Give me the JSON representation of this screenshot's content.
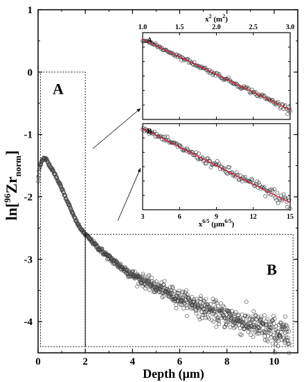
{
  "chart_data": [
    {
      "id": "main",
      "type": "scatter",
      "xlabel": "Depth (μm)",
      "ylabel_parts": {
        "pre": "ln[",
        "sup": "96",
        "base": "Zr",
        "sub": "norm",
        "post": "]"
      },
      "xlim": [
        0,
        11
      ],
      "ylim": [
        -4.5,
        1
      ],
      "x_ticks": [
        0,
        2,
        4,
        6,
        8,
        10
      ],
      "y_ticks": [
        1,
        0,
        -1,
        -2,
        -3,
        -4
      ],
      "x_tick_labels": [
        "0",
        "2",
        "4",
        "6",
        "8",
        "10"
      ],
      "y_tick_labels": [
        "1",
        "0",
        "-1",
        "-2",
        "-3",
        "-4"
      ],
      "vertical_line_x": 2.0,
      "region_labels": [
        {
          "label": "A",
          "x_range": [
            0.1,
            2.0
          ],
          "y_range": [
            -4.4,
            0.0
          ]
        },
        {
          "label": "B",
          "x_range": [
            2.0,
            10.8
          ],
          "y_range": [
            -4.4,
            -2.6
          ]
        }
      ],
      "curve_points": [
        [
          0.0,
          -1.75
        ],
        [
          0.05,
          -1.55
        ],
        [
          0.15,
          -1.42
        ],
        [
          0.25,
          -1.38
        ],
        [
          0.35,
          -1.4
        ],
        [
          0.5,
          -1.5
        ],
        [
          0.7,
          -1.63
        ],
        [
          0.9,
          -1.78
        ],
        [
          1.1,
          -1.95
        ],
        [
          1.3,
          -2.12
        ],
        [
          1.5,
          -2.3
        ],
        [
          1.7,
          -2.45
        ],
        [
          1.9,
          -2.56
        ],
        [
          2.0,
          -2.6
        ],
        [
          2.5,
          -2.8
        ],
        [
          3.0,
          -2.97
        ],
        [
          3.5,
          -3.12
        ],
        [
          4.0,
          -3.25
        ],
        [
          5.0,
          -3.45
        ],
        [
          6.0,
          -3.62
        ],
        [
          7.0,
          -3.78
        ],
        [
          8.0,
          -3.92
        ],
        [
          9.0,
          -4.05
        ],
        [
          10.0,
          -4.17
        ],
        [
          10.6,
          -4.23
        ]
      ]
    },
    {
      "id": "inset_a",
      "type": "scatter",
      "panel_label": "A",
      "xlabel_parts": {
        "base": "x",
        "sup": "2",
        "unit_pre": " (m",
        "unit_sup": "2",
        "unit_post": ")"
      },
      "xlim": [
        1.0,
        3.0
      ],
      "x_ticks": [
        1.0,
        1.5,
        2.0,
        2.5,
        3.0
      ],
      "x_tick_labels": [
        "1.0",
        "1.5",
        "2.0",
        "2.5",
        "3.0"
      ],
      "fit_line": {
        "x": [
          1.0,
          3.0
        ],
        "y": [
          -1.42,
          -2.52
        ]
      },
      "fit_color": "#d7263d"
    },
    {
      "id": "inset_b",
      "type": "scatter",
      "panel_label": "B",
      "xlabel_parts": {
        "base": "x",
        "sup": "6/5",
        "unit_pre": " (μm",
        "unit_sup": "6/5",
        "unit_post": ")"
      },
      "xlim": [
        3,
        15
      ],
      "x_ticks": [
        3,
        6,
        9,
        12,
        15
      ],
      "x_tick_labels": [
        "3",
        "6",
        "9",
        "12",
        "15"
      ],
      "fit_line": {
        "x": [
          3,
          15
        ],
        "y": [
          -2.62,
          -4.22
        ]
      },
      "fit_color": "#d7263d"
    }
  ]
}
